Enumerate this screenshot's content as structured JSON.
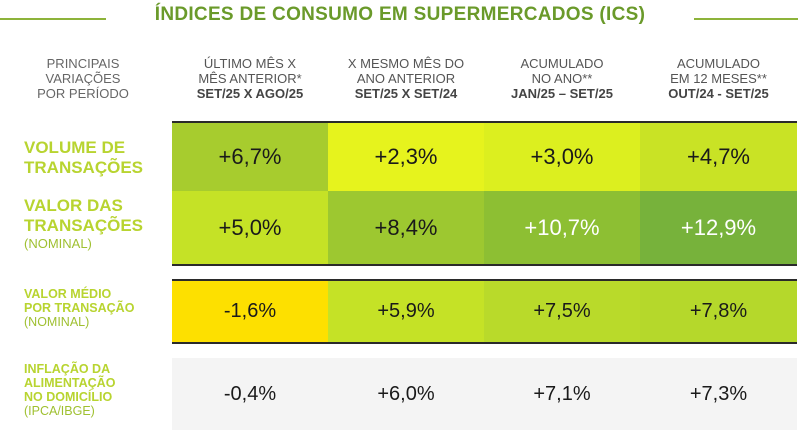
{
  "title": "ÍNDICES DE CONSUMO EM SUPERMERCADOS (ICS)",
  "colors": {
    "title_green": "#6a9a2a",
    "label_green": "#b8d430"
  },
  "headers": [
    {
      "line1": "PRINCIPAIS",
      "line2": "VARIAÇÕES",
      "line3": "POR PERÍODO",
      "sub": ""
    },
    {
      "line1": "ÚLTIMO MÊS X",
      "line2": "MÊS ANTERIOR*",
      "line3": "",
      "sub": "SET/25 X AGO/25"
    },
    {
      "line1": "X MESMO MÊS DO",
      "line2": "ANO ANTERIOR",
      "line3": "",
      "sub": "SET/25 X SET/24"
    },
    {
      "line1": "ACUMULADO",
      "line2": "NO ANO**",
      "line3": "",
      "sub": "JAN/25 – SET/25"
    },
    {
      "line1": "ACUMULADO",
      "line2": "EM 12 MESES**",
      "line3": "",
      "sub": "OUT/24 - SET/25"
    }
  ],
  "rows": [
    {
      "label1": "VOLUME DE",
      "label2": "TRANSAÇÕES",
      "note": "",
      "values": [
        "+6,7%",
        "+2,3%",
        "+3,0%",
        "+4,7%"
      ]
    },
    {
      "label1": "VALOR DAS",
      "label2": "TRANSAÇÕES",
      "note": "(NOMINAL)",
      "values": [
        "+5,0%",
        "+8,4%",
        "+10,7%",
        "+12,9%"
      ]
    },
    {
      "label1": "VALOR MÉDIO",
      "label2": "POR TRANSAÇÃO",
      "note": "(NOMINAL)",
      "values": [
        "-1,6%",
        "+5,9%",
        "+7,5%",
        "+7,8%"
      ]
    },
    {
      "label1": "INFLAÇÃO DA",
      "label2": "ALIMENTAÇÃO",
      "label3": "NO DOMICÍLIO",
      "note": "(IPCA/IBGE)",
      "values": [
        "-0,4%",
        "+6,0%",
        "+7,1%",
        "+7,3%"
      ]
    }
  ]
}
